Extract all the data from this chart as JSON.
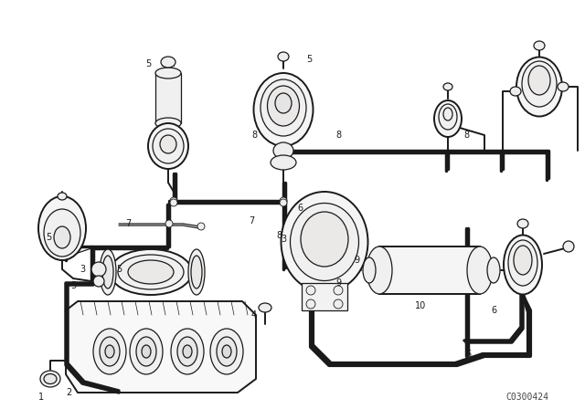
{
  "bg_color": "#ffffff",
  "line_color": "#1a1a1a",
  "watermark": "C0300424",
  "fig_width": 6.4,
  "fig_height": 4.48,
  "dpi": 100,
  "border_color": "#cccccc"
}
